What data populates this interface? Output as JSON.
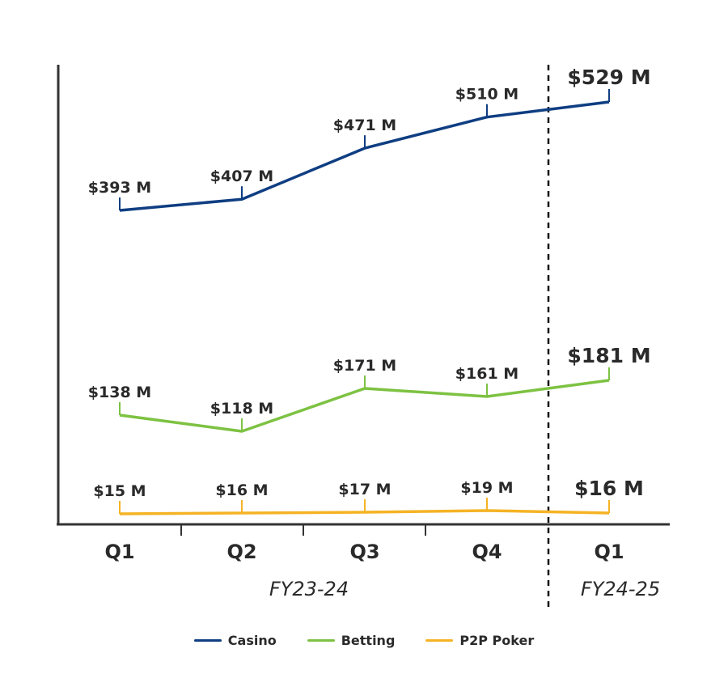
{
  "chart_data": {
    "type": "line",
    "title": "",
    "xlabel": "",
    "ylabel": "",
    "categories": [
      "Q1",
      "Q2",
      "Q3",
      "Q4",
      "Q1"
    ],
    "periods": [
      {
        "label": "FY23-24",
        "quarters": [
          "Q1",
          "Q2",
          "Q3",
          "Q4"
        ]
      },
      {
        "label": "FY24-25",
        "quarters": [
          "Q1"
        ]
      }
    ],
    "series": [
      {
        "name": "Casino",
        "color": "#0f3e82",
        "values": [
          393,
          407,
          471,
          510,
          529
        ],
        "labels": [
          "$393 M",
          "$407 M",
          "$471 M",
          "$510 M",
          "$529 M"
        ]
      },
      {
        "name": "Betting",
        "color": "#7dc242",
        "values": [
          138,
          118,
          171,
          161,
          181
        ],
        "labels": [
          "$138 M",
          "$118 M",
          "$171 M",
          "$161 M",
          "$181 M"
        ]
      },
      {
        "name": "P2P Poker",
        "color": "#f5b324",
        "values": [
          15,
          16,
          17,
          19,
          16
        ],
        "labels": [
          "$15 M",
          "$16 M",
          "$17 M",
          "$19 M",
          "$16 M"
        ]
      }
    ],
    "units": "$ M",
    "grid": false,
    "legend_position": "bottom",
    "annotations": [
      "Dashed vertical separator between FY23-24 Q4 and FY24-25 Q1"
    ]
  },
  "axis": {
    "x_ticks": [
      "Q1",
      "Q2",
      "Q3",
      "Q4",
      "Q1"
    ],
    "period_1": "FY23-24",
    "period_2": "FY24-25"
  },
  "legend": {
    "items": [
      {
        "label": "Casino",
        "color": "#0f3e82"
      },
      {
        "label": "Betting",
        "color": "#7dc242"
      },
      {
        "label": "P2P Poker",
        "color": "#f5b324"
      }
    ]
  }
}
